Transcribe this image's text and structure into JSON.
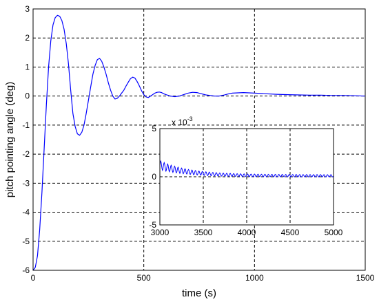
{
  "chart_data": [
    {
      "type": "line",
      "title": "",
      "xlabel": "time (s)",
      "ylabel": "pitch pointing angle (deg)",
      "xlim": [
        0,
        1500
      ],
      "ylim": [
        -6,
        3
      ],
      "xticks": [
        "0",
        "500",
        "1000",
        "1500"
      ],
      "yticks": [
        "3",
        "2",
        "1",
        "0",
        "-1",
        "-2",
        "-3",
        "-4",
        "-5",
        "-6"
      ],
      "grid": true,
      "line_color": "#0000ff",
      "series": [
        {
          "x": [
            0,
            10,
            20,
            30,
            40,
            50,
            60,
            70,
            80,
            90,
            100,
            110,
            120,
            130,
            140,
            150,
            160,
            170,
            180,
            190,
            200,
            210,
            220,
            230,
            240,
            250,
            260,
            270,
            280,
            290,
            300,
            310,
            320,
            330,
            340,
            350,
            360,
            370,
            380,
            390,
            400,
            410,
            420,
            430,
            440,
            450,
            460,
            470,
            480,
            490,
            500,
            510,
            520,
            530,
            540,
            550,
            560,
            570,
            580,
            590,
            600,
            620,
            640,
            660,
            680,
            700,
            720,
            740,
            760,
            780,
            800,
            820,
            840,
            860,
            880,
            900,
            950,
            1000,
            1050,
            1100,
            1150,
            1200,
            1250,
            1300,
            1350,
            1400,
            1450,
            1500
          ],
          "y": [
            -6.0,
            -5.9,
            -5.5,
            -4.6,
            -3.3,
            -1.8,
            -0.3,
            1.0,
            1.9,
            2.45,
            2.7,
            2.78,
            2.75,
            2.6,
            2.3,
            1.8,
            1.1,
            0.2,
            -0.6,
            -1.05,
            -1.3,
            -1.35,
            -1.25,
            -1.0,
            -0.6,
            -0.15,
            0.3,
            0.75,
            1.05,
            1.25,
            1.3,
            1.2,
            1.0,
            0.75,
            0.45,
            0.2,
            0.0,
            -0.1,
            -0.08,
            0.0,
            0.1,
            0.2,
            0.35,
            0.48,
            0.6,
            0.65,
            0.62,
            0.5,
            0.35,
            0.18,
            0.05,
            -0.03,
            -0.05,
            0.0,
            0.05,
            0.1,
            0.13,
            0.14,
            0.12,
            0.08,
            0.05,
            0.0,
            -0.02,
            0.0,
            0.05,
            0.1,
            0.13,
            0.12,
            0.08,
            0.04,
            0.02,
            0.0,
            0.0,
            0.03,
            0.07,
            0.1,
            0.12,
            0.1,
            0.08,
            0.06,
            0.05,
            0.04,
            0.03,
            0.03,
            0.02,
            0.02,
            0.01,
            0.0
          ]
        }
      ]
    },
    {
      "type": "line",
      "title": "",
      "xlabel": "",
      "ylabel": "",
      "y_multiplier": "x 10",
      "y_multiplier_exp": "-3",
      "xlim": [
        3000,
        5000
      ],
      "ylim": [
        -5,
        5
      ],
      "xticks": [
        "3000",
        "3500",
        "4000",
        "4500",
        "5000"
      ],
      "yticks": [
        "5",
        "0",
        "-5"
      ],
      "grid": true,
      "line_color": "#0000ff",
      "series": [
        {
          "x_start": 3000,
          "x_end": 5000,
          "y_start": 1.2,
          "y_end": 0.1,
          "oscillation_period": 40
        }
      ]
    }
  ]
}
